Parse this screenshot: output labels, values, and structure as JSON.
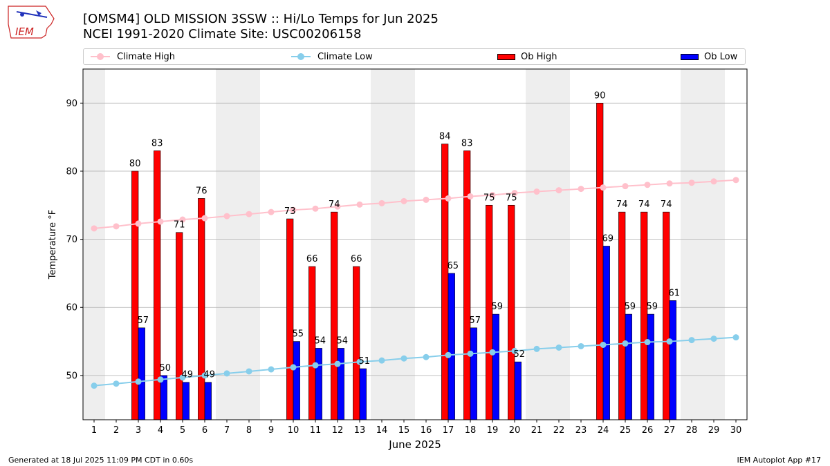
{
  "logo": {
    "text": "IEM"
  },
  "header": {
    "title_line1": "[OMSM4] OLD MISSION 3SSW :: Hi/Lo Temps for Jun 2025",
    "title_line2": "NCEI 1991-2020 Climate Site: USC00206158"
  },
  "legend": {
    "climate_high": "Climate High",
    "climate_low": "Climate Low",
    "ob_high": "Ob High",
    "ob_low": "Ob Low"
  },
  "colors": {
    "climate_high": "#ffc0cb",
    "climate_low": "#87ceeb",
    "ob_high": "#ff0000",
    "ob_low": "#0000ff",
    "weekend_band": "#eeeeee",
    "grid": "#b0b0b0"
  },
  "chart_data": {
    "type": "bar",
    "title": "[OMSM4] OLD MISSION 3SSW :: Hi/Lo Temps for Jun 2025",
    "xlabel": "June 2025",
    "ylabel": "Temperature °F",
    "xlim": [
      0.5,
      30.5
    ],
    "ylim": [
      43.5,
      95
    ],
    "yticks": [
      50,
      60,
      70,
      80,
      90
    ],
    "grid": "horizontal",
    "days": [
      1,
      2,
      3,
      4,
      5,
      6,
      7,
      8,
      9,
      10,
      11,
      12,
      13,
      14,
      15,
      16,
      17,
      18,
      19,
      20,
      21,
      22,
      23,
      24,
      25,
      26,
      27,
      28,
      29,
      30
    ],
    "weekend_bands": [
      [
        1,
        1
      ],
      [
        7,
        8
      ],
      [
        14,
        15
      ],
      [
        21,
        22
      ],
      [
        28,
        29
      ]
    ],
    "climate_high": [
      71.6,
      71.9,
      72.3,
      72.6,
      72.9,
      73.1,
      73.4,
      73.7,
      74.0,
      74.3,
      74.5,
      74.8,
      75.1,
      75.3,
      75.6,
      75.8,
      76.0,
      76.3,
      76.5,
      76.8,
      77.0,
      77.2,
      77.4,
      77.6,
      77.8,
      78.0,
      78.2,
      78.3,
      78.5,
      78.7
    ],
    "climate_low": [
      48.5,
      48.8,
      49.1,
      49.4,
      49.7,
      50.0,
      50.3,
      50.6,
      50.9,
      51.2,
      51.5,
      51.7,
      52.0,
      52.2,
      52.5,
      52.7,
      53.0,
      53.2,
      53.4,
      53.6,
      53.9,
      54.1,
      54.3,
      54.5,
      54.7,
      54.9,
      55.0,
      55.2,
      55.4,
      55.6
    ],
    "series": [
      {
        "name": "Ob High",
        "values": [
          null,
          null,
          80,
          83,
          71,
          76,
          null,
          null,
          null,
          73,
          66,
          74,
          66,
          null,
          null,
          null,
          84,
          83,
          75,
          75,
          null,
          null,
          null,
          90,
          74,
          74,
          74,
          null,
          null,
          null
        ]
      },
      {
        "name": "Ob Low",
        "values": [
          null,
          null,
          57,
          50,
          49,
          49,
          null,
          null,
          null,
          55,
          54,
          54,
          51,
          null,
          null,
          null,
          65,
          57,
          59,
          52,
          null,
          null,
          null,
          69,
          59,
          59,
          61,
          null,
          null,
          null
        ]
      }
    ]
  },
  "footer": {
    "left": "Generated at 18 Jul 2025 11:09 PM CDT in 0.60s",
    "right": "IEM Autoplot App #17"
  }
}
